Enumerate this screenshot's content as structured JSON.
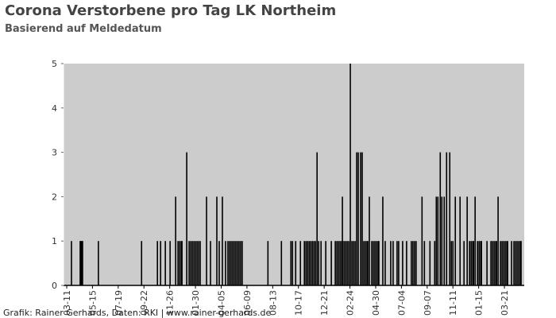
{
  "chart_data": {
    "type": "bar",
    "title": "Corona Verstorbene pro Tag LK Northeim",
    "subtitle": "Basierend auf Meldedatum",
    "source": "Grafik: Rainer Gerhards, Daten: RKI | www.rainer-gerhards.de",
    "color": "#000000",
    "background": "#cccccc",
    "x": [
      12,
      34,
      36,
      38,
      40,
      80,
      189,
      229,
      237,
      249,
      261,
      275,
      281,
      285,
      289,
      291,
      303,
      309,
      313,
      317,
      321,
      325,
      329,
      333,
      337,
      353,
      363,
      379,
      385,
      393,
      401,
      407,
      411,
      415,
      419,
      423,
      427,
      431,
      435,
      439,
      443,
      508,
      542,
      566,
      570,
      578,
      590,
      600,
      604,
      608,
      612,
      616,
      620,
      624,
      628,
      632,
      636,
      642,
      654,
      668,
      678,
      682,
      686,
      690,
      694,
      696,
      700,
      704,
      708,
      712,
      716,
      720,
      724,
      728,
      732,
      736,
      742,
      746,
      750,
      754,
      758,
      760,
      764,
      770,
      774,
      778,
      782,
      786,
      788,
      798,
      804,
      818,
      824,
      834,
      838,
      848,
      858,
      870,
      874,
      878,
      882,
      897,
      903,
      917,
      929,
      933,
      937,
      943,
      947,
      953,
      959,
      967,
      971,
      975,
      981,
      993,
      1003,
      1011,
      1017,
      1021,
      1025,
      1027,
      1031,
      1037,
      1041,
      1045,
      1047,
      1061,
      1071,
      1075,
      1079,
      1083,
      1085,
      1089,
      1095,
      1099,
      1103,
      1107,
      1111,
      1113,
      1123,
      1129,
      1133,
      1137,
      1141,
      1145,
      1147
    ],
    "values": [
      1,
      1,
      1,
      1,
      1,
      1,
      1,
      1,
      1,
      1,
      1,
      2,
      1,
      1,
      1,
      1,
      3,
      1,
      1,
      1,
      1,
      1,
      1,
      1,
      1,
      2,
      1,
      2,
      1,
      2,
      1,
      1,
      1,
      1,
      1,
      1,
      1,
      1,
      1,
      1,
      1,
      1,
      1,
      1,
      1,
      1,
      1,
      1,
      1,
      1,
      1,
      1,
      1,
      1,
      1,
      3,
      1,
      1,
      1,
      1,
      1,
      1,
      1,
      1,
      1,
      2,
      1,
      1,
      1,
      1,
      5,
      1,
      1,
      1,
      3,
      3,
      3,
      3,
      1,
      1,
      1,
      1,
      2,
      1,
      1,
      1,
      1,
      1,
      1,
      2,
      1,
      1,
      1,
      1,
      1,
      1,
      1,
      1,
      1,
      1,
      1,
      2,
      1,
      1,
      1,
      2,
      2,
      3,
      2,
      2,
      3,
      3,
      1,
      1,
      2,
      2,
      1,
      2,
      1,
      1,
      1,
      1,
      2,
      1,
      1,
      1,
      1,
      1,
      1,
      1,
      1,
      1,
      1,
      2,
      1,
      1,
      1,
      1,
      1,
      1,
      1,
      1,
      1,
      1,
      1,
      1,
      1
    ],
    "xlim": [
      -8,
      1155
    ],
    "xticks": [
      {
        "value": 0,
        "label": "03-11"
      },
      {
        "value": 65,
        "label": "05-15"
      },
      {
        "value": 130,
        "label": "07-19"
      },
      {
        "value": 195,
        "label": "09-22"
      },
      {
        "value": 260,
        "label": "11-26"
      },
      {
        "value": 325,
        "label": "01-30"
      },
      {
        "value": 390,
        "label": "04-05"
      },
      {
        "value": 455,
        "label": "06-09"
      },
      {
        "value": 520,
        "label": "08-13"
      },
      {
        "value": 585,
        "label": "10-17"
      },
      {
        "value": 650,
        "label": "12-21"
      },
      {
        "value": 715,
        "label": "02-24"
      },
      {
        "value": 780,
        "label": "04-30"
      },
      {
        "value": 845,
        "label": "07-04"
      },
      {
        "value": 910,
        "label": "09-07"
      },
      {
        "value": 975,
        "label": "11-11"
      },
      {
        "value": 1040,
        "label": "01-15"
      },
      {
        "value": 1105,
        "label": "03-21"
      }
    ],
    "ylim": [
      0,
      5
    ],
    "yticks": [
      0,
      1,
      2,
      3,
      4,
      5
    ]
  }
}
